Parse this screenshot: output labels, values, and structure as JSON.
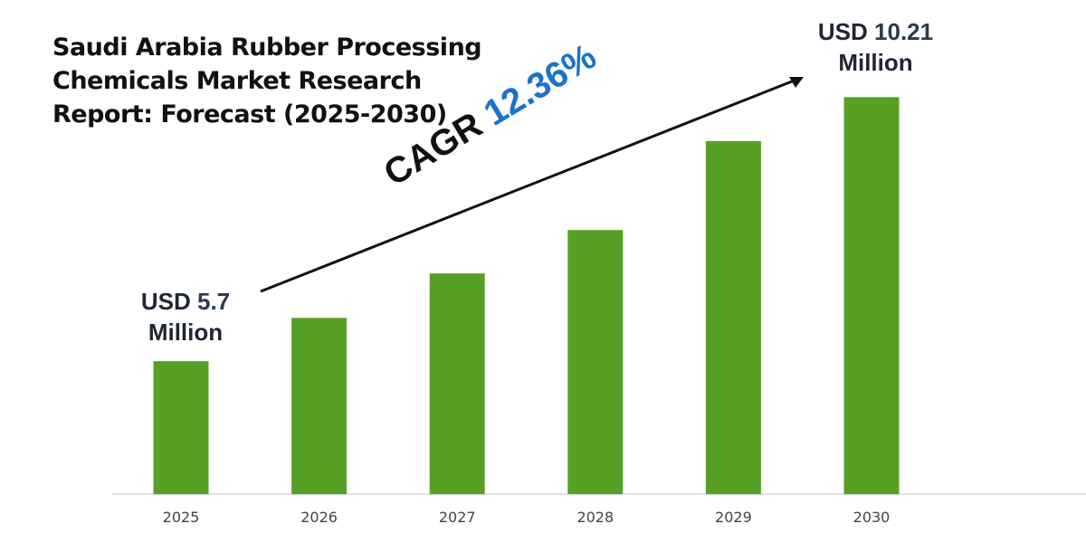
{
  "chart_data": {
    "type": "bar",
    "title": "Saudi Arabia Rubber Processing Chemicals Market Research Report: Forecast (2025-2030)",
    "categories": [
      "2025",
      "2026",
      "2027",
      "2028",
      "2029",
      "2030"
    ],
    "values": [
      5.7,
      6.44,
      7.2,
      7.94,
      9.46,
      10.21
    ],
    "unit": "USD Million",
    "xlabel": "",
    "ylabel": "",
    "grid": false,
    "bar_color": "#56a125",
    "annotations": {
      "start": {
        "prefix": "USD",
        "value": "5.7",
        "unit": "Million"
      },
      "end": {
        "prefix": "USD",
        "value": "10.21",
        "unit": "Million"
      },
      "cagr": {
        "label": "CAGR",
        "value": "12.36%"
      }
    },
    "accent_color": "#1b73c9"
  }
}
